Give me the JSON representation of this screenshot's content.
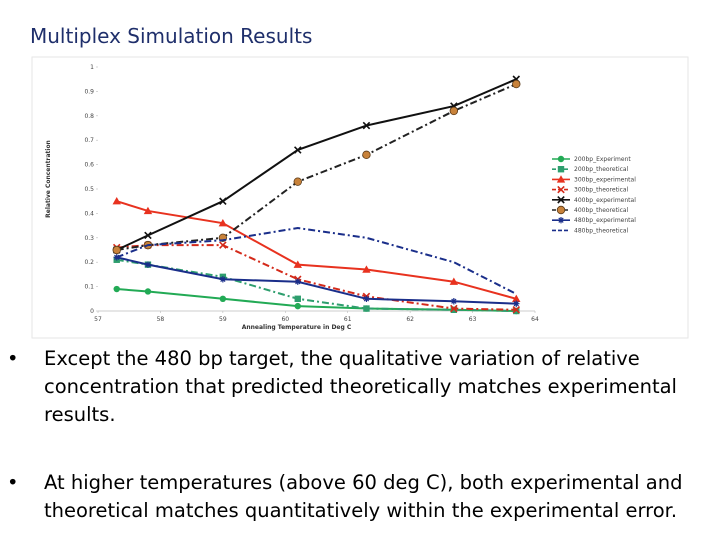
{
  "slide": {
    "title": "Multiplex Simulation Results",
    "bullets": [
      {
        "marker": "•",
        "text": "Except the 480 bp target, the qualitative variation of relative concentration that predicted theoretically matches experimental results."
      },
      {
        "marker": "•",
        "text": "At higher temperatures (above 60 deg C), both experimental and theoretical matches quantitatively within the experimental error."
      }
    ]
  },
  "chart_data": {
    "type": "line",
    "title": "",
    "xlabel": "Annealing Temperature in Deg C",
    "ylabel": "Relative Concentration",
    "xlim": [
      57,
      64
    ],
    "ylim": [
      0,
      1
    ],
    "xticks": [
      "57",
      "58",
      "59",
      "60",
      "61",
      "62",
      "63",
      "64"
    ],
    "yticks": [
      "0",
      "0.1",
      "0.2",
      "0.3",
      "0.4",
      "0.5",
      "0.6",
      "0.7",
      "0.8",
      "0.9",
      "1"
    ],
    "grid": false,
    "legend_position": "right",
    "series": [
      {
        "name": "200bp_Experiment",
        "color": "#22aa55",
        "dash": "solid",
        "marker": "circle",
        "x": [
          57.3,
          57.8,
          59.0,
          60.2,
          61.3,
          62.7,
          63.7
        ],
        "y": [
          0.09,
          0.08,
          0.05,
          0.02,
          0.01,
          0.005,
          0.0
        ]
      },
      {
        "name": "200bp_theoretical",
        "color": "#2e9e6e",
        "dash": "dashdot",
        "marker": "square",
        "x": [
          57.3,
          57.8,
          59.0,
          60.2,
          61.3,
          62.7,
          63.7
        ],
        "y": [
          0.21,
          0.19,
          0.14,
          0.05,
          0.01,
          0.005,
          0.0
        ]
      },
      {
        "name": "300bp_experimental",
        "color": "#e8321f",
        "dash": "solid",
        "marker": "triangle",
        "x": [
          57.3,
          57.8,
          59.0,
          60.2,
          61.3,
          62.7,
          63.7
        ],
        "y": [
          0.45,
          0.41,
          0.36,
          0.19,
          0.17,
          0.12,
          0.05
        ]
      },
      {
        "name": "300bp_theoretical",
        "color": "#d42a1a",
        "dash": "dashdot",
        "marker": "cross",
        "x": [
          57.3,
          57.8,
          59.0,
          60.2,
          61.3,
          62.7,
          63.7
        ],
        "y": [
          0.26,
          0.27,
          0.27,
          0.13,
          0.06,
          0.01,
          0.005
        ]
      },
      {
        "name": "400bp_experimental",
        "color": "#111111",
        "dash": "solid",
        "marker": "x",
        "x": [
          57.3,
          57.8,
          59.0,
          60.2,
          61.3,
          62.7,
          63.7
        ],
        "y": [
          0.25,
          0.31,
          0.45,
          0.66,
          0.76,
          0.84,
          0.95
        ]
      },
      {
        "name": "400bp_theoretical",
        "color": "#222222",
        "dash": "dashdot",
        "marker": "circle-orange",
        "x": [
          57.3,
          57.8,
          59.0,
          60.2,
          61.3,
          62.7,
          63.7
        ],
        "y": [
          0.25,
          0.27,
          0.3,
          0.53,
          0.64,
          0.82,
          0.93
        ]
      },
      {
        "name": "480bp_experimental",
        "color": "#1a2e8a",
        "dash": "solid",
        "marker": "star",
        "x": [
          57.3,
          57.8,
          59.0,
          60.2,
          61.3,
          62.7,
          63.7
        ],
        "y": [
          0.22,
          0.19,
          0.13,
          0.12,
          0.05,
          0.04,
          0.03
        ]
      },
      {
        "name": "480bp_theoretical",
        "color": "#1a2e8a",
        "dash": "dashdot",
        "marker": "none",
        "x": [
          57.3,
          57.8,
          59.0,
          60.2,
          61.3,
          62.7,
          63.7
        ],
        "y": [
          0.22,
          0.27,
          0.29,
          0.34,
          0.3,
          0.2,
          0.07
        ]
      }
    ]
  }
}
